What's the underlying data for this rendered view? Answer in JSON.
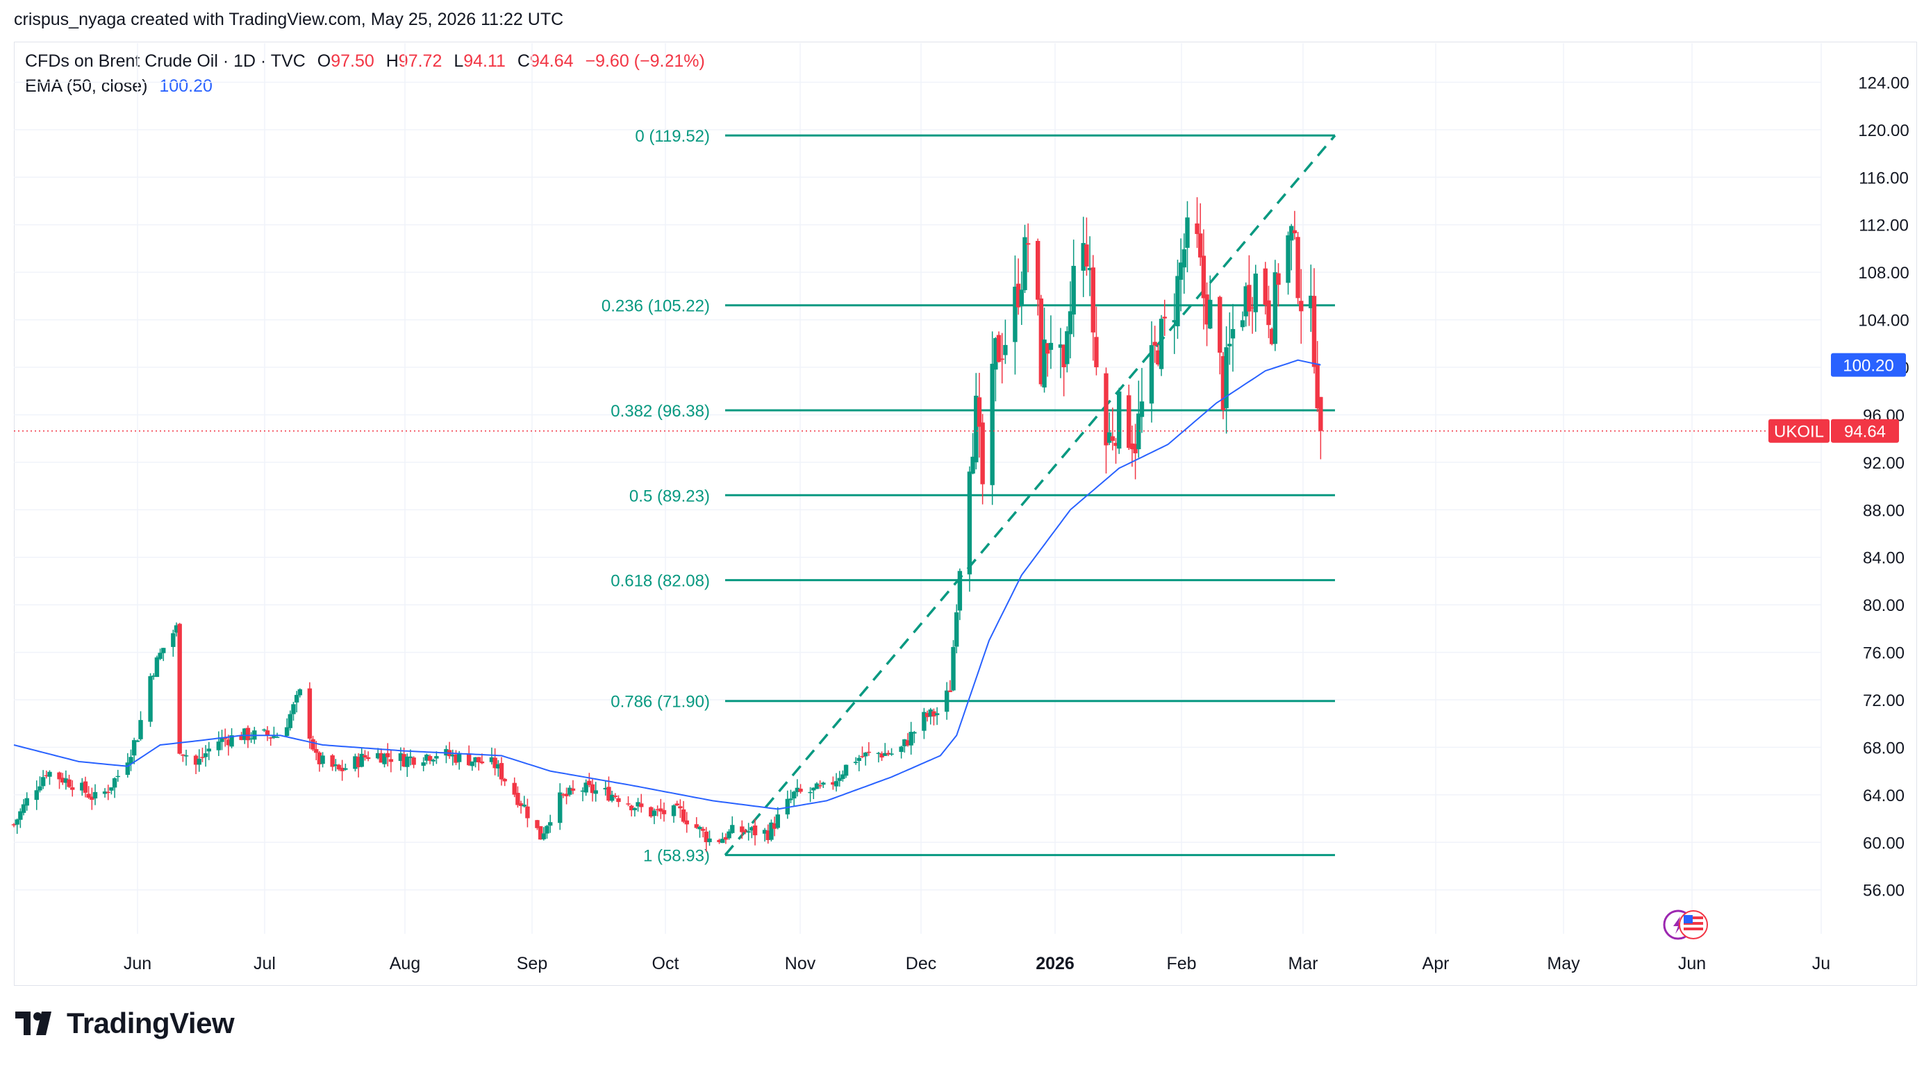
{
  "header": {
    "credit": "crispus_nyaga created with TradingView.com, May 25, 2026 11:22 UTC"
  },
  "legend": {
    "symbol_line": "CFDs on Brent Crude Oil · 1D · TVC",
    "open_label": "O",
    "open": "97.50",
    "high_label": "H",
    "high": "97.72",
    "low_label": "L",
    "low": "94.11",
    "close_label": "C",
    "close": "94.64",
    "change": "−9.60 (−9.21%)",
    "ema_label": "EMA (50, close)",
    "ema_value": "100.20"
  },
  "brand": {
    "name": "TradingView"
  },
  "colors": {
    "up": "#089981",
    "down": "#f23645",
    "ema": "#2962ff",
    "fib": "#089981",
    "grid": "#f0f3fa",
    "axis_text": "#131722"
  },
  "chart_data": {
    "type": "candlestick",
    "symbol": "UKOIL",
    "interval": "1D",
    "y_axis": {
      "ticks": [
        56,
        60,
        64,
        68,
        72,
        76,
        80,
        84,
        88,
        92,
        96,
        100,
        104,
        108,
        112,
        116,
        120,
        124
      ],
      "tick_labels": [
        "56.00",
        "60.00",
        "64.00",
        "68.00",
        "72.00",
        "76.00",
        "80.00",
        "84.00",
        "88.00",
        "92.00",
        "96.00",
        "100.00",
        "104.00",
        "108.00",
        "112.00",
        "116.00",
        "120.00",
        "124.00"
      ],
      "range": [
        52.3,
        127.3
      ]
    },
    "x_axis": {
      "labels": [
        "Jun",
        "Jul",
        "Aug",
        "Sep",
        "Oct",
        "Nov",
        "Dec",
        "2026",
        "Feb",
        "Mar",
        "Apr",
        "May",
        "Jun",
        "Ju"
      ],
      "bold_labels": [
        "2026"
      ]
    },
    "fib_levels": [
      {
        "ratio": "0",
        "price": 119.52,
        "label": "0 (119.52)"
      },
      {
        "ratio": "0.236",
        "price": 105.22,
        "label": "0.236 (105.22)"
      },
      {
        "ratio": "0.382",
        "price": 96.38,
        "label": "0.382 (96.38)"
      },
      {
        "ratio": "0.5",
        "price": 89.23,
        "label": "0.5 (89.23)"
      },
      {
        "ratio": "0.618",
        "price": 82.08,
        "label": "0.618 (82.08)"
      },
      {
        "ratio": "0.786",
        "price": 71.9,
        "label": "0.786 (71.90)"
      },
      {
        "ratio": "1",
        "price": 58.93,
        "label": "1 (58.93)"
      }
    ],
    "fib_trend_line": {
      "from_price": 58.93,
      "to_price": 119.52
    },
    "last_price": {
      "value": 94.64,
      "label": "94.64",
      "tag": "UKOIL"
    },
    "ema_badge": {
      "value": 100.2,
      "label": "100.20"
    },
    "close_path": [
      {
        "time": 0,
        "close": 61.5
      },
      {
        "time": 5,
        "close": 64
      },
      {
        "time": 10,
        "close": 66
      },
      {
        "time": 18,
        "close": 65
      },
      {
        "time": 26,
        "close": 63.5
      },
      {
        "time": 33,
        "close": 66
      },
      {
        "time": 38,
        "close": 69
      },
      {
        "time": 42,
        "close": 74
      },
      {
        "time": 47,
        "close": 77
      },
      {
        "time": 50,
        "close": 78
      },
      {
        "time": 51,
        "close": 68
      },
      {
        "time": 56,
        "close": 66.5
      },
      {
        "time": 62,
        "close": 68.5
      },
      {
        "time": 70,
        "close": 69
      },
      {
        "time": 82,
        "close": 69
      },
      {
        "time": 88,
        "close": 72.5
      },
      {
        "time": 93,
        "close": 67
      },
      {
        "time": 100,
        "close": 66
      },
      {
        "time": 110,
        "close": 67.5
      },
      {
        "time": 120,
        "close": 67
      },
      {
        "time": 130,
        "close": 67.5
      },
      {
        "time": 140,
        "close": 67
      },
      {
        "time": 148,
        "close": 66.5
      },
      {
        "time": 157,
        "close": 63
      },
      {
        "time": 162,
        "close": 60.5
      },
      {
        "time": 167,
        "close": 63.5
      },
      {
        "time": 175,
        "close": 64.5
      },
      {
        "time": 185,
        "close": 64
      },
      {
        "time": 195,
        "close": 62.5
      },
      {
        "time": 205,
        "close": 62.5
      },
      {
        "time": 215,
        "close": 60
      },
      {
        "time": 222,
        "close": 61
      },
      {
        "time": 232,
        "close": 60.8
      },
      {
        "time": 240,
        "close": 64
      },
      {
        "time": 250,
        "close": 64.5
      },
      {
        "time": 258,
        "close": 67
      },
      {
        "time": 265,
        "close": 67.5
      },
      {
        "time": 272,
        "close": 67.5
      },
      {
        "time": 280,
        "close": 70.5
      },
      {
        "time": 285,
        "close": 71
      },
      {
        "time": 288,
        "close": 73
      },
      {
        "time": 290,
        "close": 80
      },
      {
        "time": 294,
        "close": 93
      },
      {
        "time": 296,
        "close": 96
      },
      {
        "time": 298,
        "close": 90
      },
      {
        "time": 302,
        "close": 101
      },
      {
        "time": 306,
        "close": 103
      },
      {
        "time": 310,
        "close": 108
      },
      {
        "time": 313,
        "close": 112
      },
      {
        "time": 316,
        "close": 100
      },
      {
        "time": 320,
        "close": 104
      },
      {
        "time": 323,
        "close": 98
      },
      {
        "time": 326,
        "close": 108
      },
      {
        "time": 330,
        "close": 110
      },
      {
        "time": 333,
        "close": 100
      },
      {
        "time": 336,
        "close": 93.5
      },
      {
        "time": 340,
        "close": 96
      },
      {
        "time": 345,
        "close": 94
      },
      {
        "time": 349,
        "close": 99
      },
      {
        "time": 352,
        "close": 102
      },
      {
        "time": 356,
        "close": 104
      },
      {
        "time": 360,
        "close": 110
      },
      {
        "time": 363,
        "close": 112
      },
      {
        "time": 366,
        "close": 106
      },
      {
        "time": 369,
        "close": 104
      },
      {
        "time": 372,
        "close": 98
      },
      {
        "time": 375,
        "close": 103
      },
      {
        "time": 379,
        "close": 106
      },
      {
        "time": 383,
        "close": 108
      },
      {
        "time": 387,
        "close": 104
      },
      {
        "time": 390,
        "close": 110
      },
      {
        "time": 393,
        "close": 111
      },
      {
        "time": 396,
        "close": 106
      },
      {
        "time": 399,
        "close": 104
      },
      {
        "time": 400,
        "close": 102
      },
      {
        "time": 402,
        "close": 94.64
      }
    ],
    "ema_path": [
      {
        "time": 0,
        "value": 68.2
      },
      {
        "time": 20,
        "value": 66.8
      },
      {
        "time": 35,
        "value": 66.4
      },
      {
        "time": 45,
        "value": 68.2
      },
      {
        "time": 55,
        "value": 68.5
      },
      {
        "time": 70,
        "value": 69
      },
      {
        "time": 82,
        "value": 69
      },
      {
        "time": 95,
        "value": 68.2
      },
      {
        "time": 120,
        "value": 67.7
      },
      {
        "time": 150,
        "value": 67.3
      },
      {
        "time": 165,
        "value": 66
      },
      {
        "time": 190,
        "value": 64.8
      },
      {
        "time": 215,
        "value": 63.5
      },
      {
        "time": 235,
        "value": 62.8
      },
      {
        "time": 250,
        "value": 63.5
      },
      {
        "time": 270,
        "value": 65.5
      },
      {
        "time": 285,
        "value": 67.3
      },
      {
        "time": 290,
        "value": 69
      },
      {
        "time": 295,
        "value": 73
      },
      {
        "time": 300,
        "value": 77
      },
      {
        "time": 310,
        "value": 82.5
      },
      {
        "time": 325,
        "value": 88
      },
      {
        "time": 340,
        "value": 91.5
      },
      {
        "time": 355,
        "value": 93.5
      },
      {
        "time": 370,
        "value": 97
      },
      {
        "time": 385,
        "value": 99.7
      },
      {
        "time": 395,
        "value": 100.6
      },
      {
        "time": 402,
        "value": 100.2
      }
    ]
  }
}
